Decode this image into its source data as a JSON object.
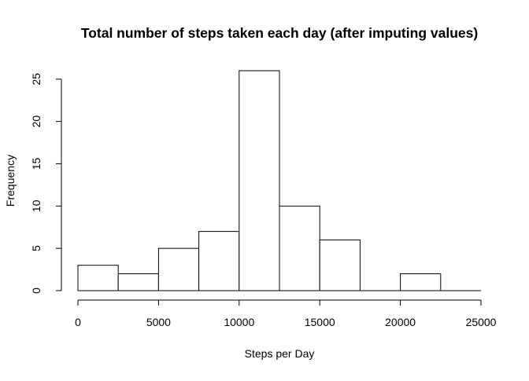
{
  "chart_data": {
    "type": "bar",
    "title": "Total number of steps taken each day (after imputing values)",
    "xlabel": "Steps per Day",
    "ylabel": "Frequency",
    "bins": [
      {
        "start": 0,
        "end": 2500,
        "count": 3
      },
      {
        "start": 2500,
        "end": 5000,
        "count": 2
      },
      {
        "start": 5000,
        "end": 7500,
        "count": 5
      },
      {
        "start": 7500,
        "end": 10000,
        "count": 7
      },
      {
        "start": 10000,
        "end": 12500,
        "count": 26
      },
      {
        "start": 12500,
        "end": 15000,
        "count": 10
      },
      {
        "start": 15000,
        "end": 17500,
        "count": 6
      },
      {
        "start": 17500,
        "end": 20000,
        "count": 0
      },
      {
        "start": 20000,
        "end": 22500,
        "count": 2
      },
      {
        "start": 22500,
        "end": 25000,
        "count": 0
      }
    ],
    "xlim": [
      0,
      25000
    ],
    "ylim": [
      0,
      26
    ],
    "x_ticks": [
      "0",
      "5000",
      "10000",
      "15000",
      "20000",
      "25000"
    ],
    "y_ticks": [
      "0",
      "5",
      "10",
      "15",
      "20",
      "25"
    ],
    "bar_fill": "#ffffff",
    "bar_stroke": "#000000",
    "grid": false,
    "legend": "none"
  }
}
